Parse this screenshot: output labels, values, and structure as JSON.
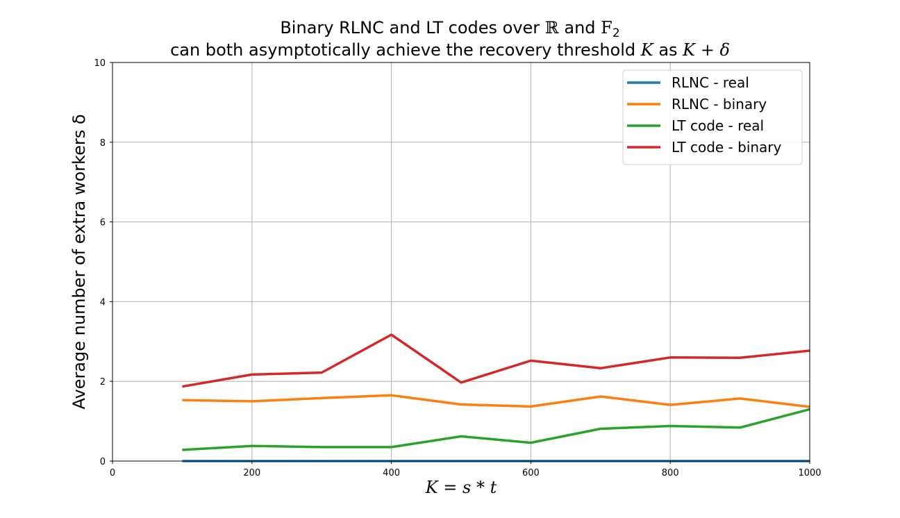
{
  "chart_data": {
    "type": "line",
    "title": {
      "line1_a": "Binary RLNC and LT codes over ",
      "line1_field_real": "ℝ",
      "line1_and": " and ",
      "line1_field_binary": "F",
      "line1_field_binary_sub": "2",
      "line2_a": "can both asymptotically achieve the recovery threshold ",
      "line2_k": "K",
      "line2_as": " as ",
      "line2_expr": "K + δ"
    },
    "xlabel": "K = s * t",
    "ylabel": "Average number of extra workers δ",
    "xlim": [
      0,
      1000
    ],
    "ylim": [
      0,
      10
    ],
    "xticks": [
      0,
      200,
      400,
      600,
      800,
      1000
    ],
    "yticks": [
      0,
      2,
      4,
      6,
      8,
      10
    ],
    "grid": true,
    "legend_position": "top-right",
    "x": [
      100,
      200,
      300,
      400,
      500,
      600,
      700,
      800,
      900,
      1000
    ],
    "series": [
      {
        "name": "RLNC - real",
        "color": "#1f77b4",
        "values": [
          0,
          0,
          0,
          0,
          0,
          0,
          0,
          0,
          0,
          0
        ]
      },
      {
        "name": "RLNC - binary",
        "color": "#ff7f0e",
        "values": [
          1.53,
          1.5,
          1.58,
          1.65,
          1.42,
          1.37,
          1.62,
          1.41,
          1.57,
          1.36
        ]
      },
      {
        "name": "LT code - real",
        "color": "#2ca02c",
        "values": [
          0.28,
          0.38,
          0.35,
          0.35,
          0.62,
          0.46,
          0.81,
          0.88,
          0.84,
          1.3
        ]
      },
      {
        "name": "LT code - binary",
        "color": "#d62728",
        "values": [
          1.87,
          2.17,
          2.22,
          3.17,
          1.97,
          2.52,
          2.33,
          2.6,
          2.59,
          2.77
        ]
      }
    ]
  }
}
